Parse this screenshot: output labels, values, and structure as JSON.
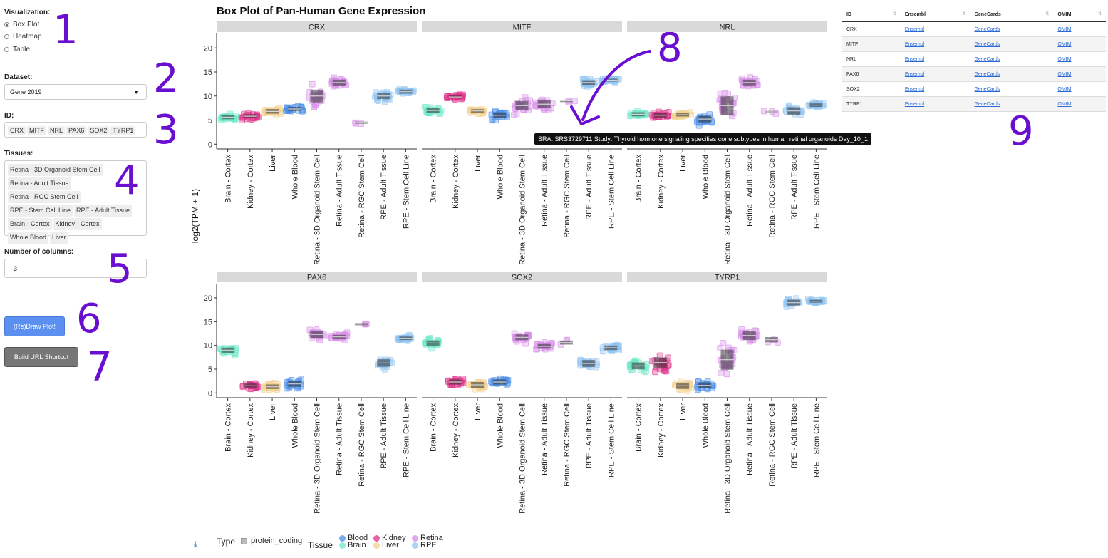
{
  "sidebar": {
    "visualization_label": "Visualization:",
    "viz_options": [
      {
        "label": "Box Plot",
        "checked": true
      },
      {
        "label": "Heatmap",
        "checked": false
      },
      {
        "label": "Table",
        "checked": false
      }
    ],
    "dataset_label": "Dataset:",
    "dataset_value": "Gene 2019",
    "id_label": "ID:",
    "ids": [
      "CRX",
      "MITF",
      "NRL",
      "PAX6",
      "SOX2",
      "TYRP1"
    ],
    "tissues_label": "Tissues:",
    "tissues": [
      "Retina - 3D Organoid Stem Cell",
      "Retina - Adult Tissue",
      "Retina - RGC Stem Cell",
      "RPE - Stem Cell Line",
      "RPE - Adult Tissue",
      "Brain - Cortex",
      "Kidney - Cortex",
      "Whole Blood",
      "Liver"
    ],
    "columns_label": "Number of columns:",
    "columns_value": "3",
    "draw_button": "(Re)Draw Plot!",
    "url_button": "Build URL Shortcut"
  },
  "annotations": [
    "1",
    "2",
    "3",
    "4",
    "5",
    "6",
    "7",
    "8",
    "9"
  ],
  "tooltip": "SRA: SRS3729711 Study: Thyroid hormone signaling specifies cone subtypes in human retinal organoids Day_10_1",
  "table": {
    "headers": [
      "ID",
      "Ensembl",
      "GeneCards",
      "OMIM"
    ],
    "rows": [
      [
        "CRX",
        "Ensembl",
        "GeneCards",
        "OMIM"
      ],
      [
        "MITF",
        "Ensembl",
        "GeneCards",
        "OMIM"
      ],
      [
        "NRL",
        "Ensembl",
        "GeneCards",
        "OMIM"
      ],
      [
        "PAX6",
        "Ensembl",
        "GeneCards",
        "OMIM"
      ],
      [
        "SOX2",
        "Ensembl",
        "GeneCards",
        "OMIM"
      ],
      [
        "TYRP1",
        "Ensembl",
        "GeneCards",
        "OMIM"
      ]
    ]
  },
  "legend": {
    "type_label": "Type",
    "type_value": "protein_coding",
    "tissue_label": "Tissue",
    "items": [
      {
        "name": "Blood",
        "color": "#4a8de8"
      },
      {
        "name": "Brain",
        "color": "#6de8c8"
      },
      {
        "name": "Kidney",
        "color": "#e0308a"
      },
      {
        "name": "Liver",
        "color": "#f2d090"
      },
      {
        "name": "Retina",
        "color": "#d88be8"
      },
      {
        "name": "RPE",
        "color": "#8fc4f2"
      }
    ]
  },
  "chart_data": {
    "type": "box",
    "title": "Box Plot of Pan-Human Gene Expression",
    "ylabel": "log2(TPM + 1)",
    "ylim": [
      -1,
      23
    ],
    "yticks": [
      0,
      5,
      10,
      15,
      20
    ],
    "categories": [
      "Brain - Cortex",
      "Kidney - Cortex",
      "Liver",
      "Whole Blood",
      "Retina - 3D Organoid Stem Cell",
      "Retina - Adult Tissue",
      "Retina - RGC Stem Cell",
      "RPE - Adult Tissue",
      "RPE - Stem Cell Line"
    ],
    "category_colors": [
      "#6de8c8",
      "#e0308a",
      "#f2d090",
      "#4a8de8",
      "#d88be8",
      "#d88be8",
      "#d88be8",
      "#8fc4f2",
      "#8fc4f2"
    ],
    "panels": [
      {
        "gene": "CRX",
        "medians": [
          5.6,
          5.8,
          6.8,
          7.3,
          10.0,
          12.8,
          4.5,
          10.0,
          10.9
        ],
        "spreads": [
          0.7,
          0.7,
          0.8,
          0.7,
          2.2,
          1.0,
          0.3,
          1.1,
          0.7
        ]
      },
      {
        "gene": "MITF",
        "medians": [
          7.0,
          9.8,
          6.9,
          6.0,
          8.0,
          8.3,
          9.0,
          12.8,
          13.3
        ],
        "spreads": [
          0.8,
          0.5,
          0.6,
          1.0,
          1.6,
          1.3,
          0.3,
          0.8,
          0.5
        ]
      },
      {
        "gene": "NRL",
        "medians": [
          6.2,
          6.0,
          6.1,
          5.2,
          8.0,
          12.8,
          6.7,
          6.9,
          8.1
        ],
        "spreads": [
          0.7,
          0.8,
          0.6,
          1.1,
          3.2,
          1.0,
          0.3,
          1.3,
          0.6
        ]
      },
      {
        "gene": "PAX6",
        "medians": [
          9.0,
          1.5,
          1.3,
          1.9,
          12.3,
          11.8,
          14.5,
          6.3,
          11.5
        ],
        "spreads": [
          0.9,
          0.8,
          0.8,
          1.0,
          1.2,
          0.7,
          0.3,
          1.3,
          0.6
        ]
      },
      {
        "gene": "SOX2",
        "medians": [
          10.5,
          2.3,
          1.7,
          2.3,
          11.7,
          9.8,
          10.6,
          6.2,
          9.5
        ],
        "spreads": [
          0.9,
          0.9,
          1.0,
          0.9,
          1.0,
          0.8,
          0.7,
          1.2,
          0.8
        ]
      },
      {
        "gene": "TYRP1",
        "medians": [
          5.7,
          6.4,
          1.5,
          1.6,
          7.0,
          12.1,
          11.2,
          19.0,
          19.3
        ],
        "spreads": [
          1.2,
          1.8,
          1.1,
          1.0,
          3.5,
          1.6,
          0.9,
          1.0,
          0.5
        ]
      }
    ]
  }
}
